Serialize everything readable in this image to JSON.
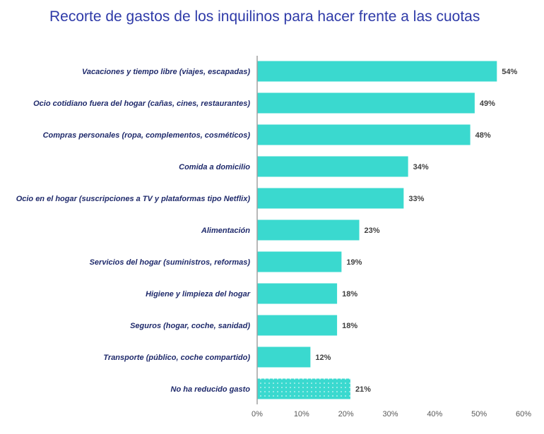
{
  "chart_data": {
    "type": "bar",
    "orientation": "horizontal",
    "title": "Recorte de gastos de los inquilinos para hacer frente a las cuotas",
    "categories": [
      "Vacaciones y tiempo libre (viajes, escapadas)",
      "Ocio cotidiano fuera del hogar (cañas, cines, restaurantes)",
      "Compras personales (ropa, complementos, cosméticos)",
      "Comida a domicilio",
      "Ocio en el hogar (suscripciones a TV y plataformas tipo Netflix)",
      "Alimentación",
      "Servicios del hogar (suministros, reformas)",
      "Higiene y limpieza del hogar",
      "Seguros (hogar, coche, sanidad)",
      "Transporte (público, coche compartido)",
      "No ha reducido gasto"
    ],
    "values": [
      54,
      49,
      48,
      34,
      33,
      23,
      19,
      18,
      18,
      12,
      21
    ],
    "data_labels": [
      "54%",
      "49%",
      "48%",
      "34%",
      "33%",
      "23%",
      "19%",
      "18%",
      "18%",
      "12%",
      "21%"
    ],
    "xlim": [
      0,
      60
    ],
    "x_ticks": [
      "0%",
      "10%",
      "20%",
      "30%",
      "40%",
      "50%",
      "60%"
    ],
    "grid": false,
    "colors": {
      "bar": "#3ad9cf",
      "last_bar_pattern": "dotted",
      "title": "#2e3aa8",
      "label": "#1f2a6b"
    }
  }
}
